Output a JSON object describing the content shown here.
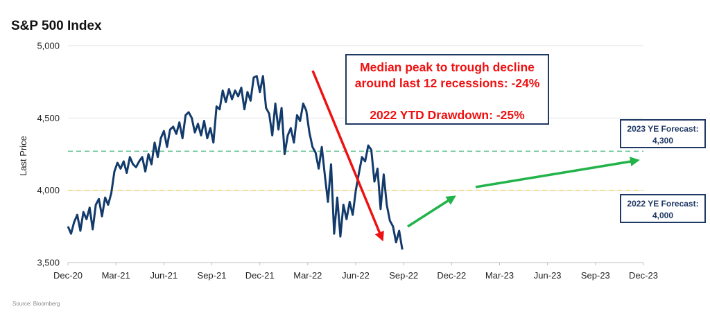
{
  "chart_data": {
    "type": "line",
    "title": "S&P 500 Index",
    "ylabel": "Last Price",
    "xlabel": "",
    "ylim": [
      3500,
      5000
    ],
    "yticks": [
      "3,500",
      "4,000",
      "4,500",
      "5,000"
    ],
    "ytick_values": [
      3500,
      4000,
      4500,
      5000
    ],
    "xticks": [
      "Dec-20",
      "Mar-21",
      "Jun-21",
      "Sep-21",
      "Dec-21",
      "Mar-22",
      "Jun-22",
      "Sep-22",
      "Dec-22",
      "Mar-23",
      "Jun-23",
      "Sep-23",
      "Dec-23"
    ],
    "grid": "horizontal",
    "series": [
      {
        "values": [
          3750,
          3700,
          3780,
          3830,
          3720,
          3850,
          3800,
          3880,
          3730,
          3900,
          3940,
          3820,
          3950,
          3900,
          3980,
          4130,
          4190,
          4150,
          4200,
          4120,
          4230,
          4180,
          4160,
          4200,
          4230,
          4130,
          4250,
          4180,
          4330,
          4230,
          4360,
          4410,
          4300,
          4420,
          4440,
          4390,
          4470,
          4360,
          4520,
          4540,
          4500,
          4400,
          4460,
          4380,
          4480,
          4360,
          4430,
          4330,
          4580,
          4560,
          4690,
          4610,
          4700,
          4630,
          4690,
          4650,
          4710,
          4560,
          4680,
          4620,
          4780,
          4790,
          4680,
          4790,
          4570,
          4530,
          4380,
          4600,
          4420,
          4570,
          4250,
          4380,
          4430,
          4330,
          4520,
          4480,
          4600,
          4550,
          4400,
          4300,
          4260,
          4150,
          4300,
          4100,
          3920,
          4180,
          3700,
          3950,
          3680,
          3900,
          3800,
          3920,
          3830,
          4000,
          4120,
          4230,
          4200,
          4310,
          4280,
          4060,
          4150,
          3870,
          4110,
          3900,
          3790,
          3750,
          3640,
          3720,
          3590
        ]
      }
    ],
    "reference_lines": [
      {
        "value": 4270,
        "color": "#6cc49a",
        "style": "dashed"
      },
      {
        "value": 4000,
        "color": "#f5d77c",
        "style": "dashed"
      }
    ],
    "callout": {
      "line1": "Median peak to trough decline",
      "line2": "around last 12 recessions: -24%",
      "line3": "2022 YTD Drawdown: -25%"
    },
    "forecast_2023": {
      "line1": "2023 YE Forecast:",
      "line2": "4,300"
    },
    "forecast_2022": {
      "line1": "2022 YE Forecast:",
      "line2": "4,000"
    },
    "arrow_colors": {
      "decline": "#ee1111",
      "recovery": "#22b34a"
    },
    "line_color": "#123a6b",
    "source": "Source: Bloomberg"
  }
}
